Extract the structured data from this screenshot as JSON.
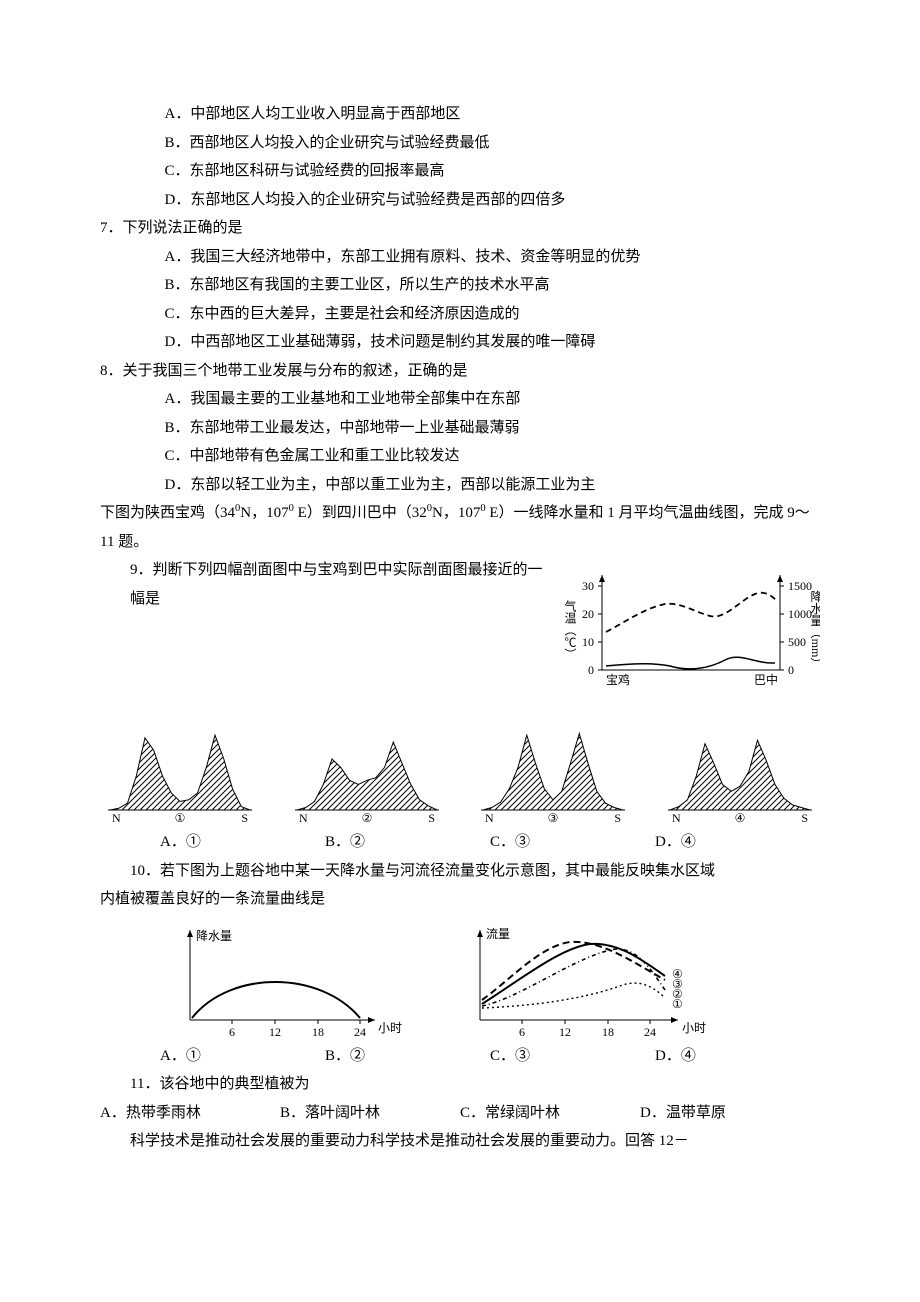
{
  "q6": {
    "A": "A．中部地区人均工业收入明显高于西部地区",
    "B": "B．西部地区人均投入的企业研究与试验经费最低",
    "C": "C．东部地区科研与试验经费的回报率最高",
    "D": "D．东部地区人均投入的企业研究与试验经费是西部的四倍多"
  },
  "q7": {
    "stem": "7．下列说法正确的是",
    "A": "A．我国三大经济地带中，东部工业拥有原料、技术、资金等明显的优势",
    "B": "B．东部地区有我国的主要工业区，所以生产的技术水平高",
    "C": "C．东中西的巨大差异，主要是社会和经济原因造成的",
    "D": "D．中西部地区工业基础薄弱，技术问题是制约其发展的唯一障碍"
  },
  "q8": {
    "stem": "8．关于我国三个地带工业发展与分布的叙述，正确的是",
    "A": "A．我国最主要的工业基地和工业地带全部集中在东部",
    "B": "B．东部地带工业最发达，中部地带一上业基础最薄弱",
    "C": "C．中部地带有色金属工业和重工业比较发达",
    "D": "D．东部以轻工业为主，中部以重工业为主，西部以能源工业为主"
  },
  "intro9_a": "下图为陕西宝鸡（34",
  "intro9_b": "N，107",
  "intro9_c": " E）到四川巴中（32",
  "intro9_d": "N，107",
  "intro9_e": " E）一线降水量和 1 月平均气温曲线图，完成 9～11 题。",
  "sup0": "0",
  "q9": {
    "stem": "9．判断下列四幅剖面图中与宝鸡到巴中实际剖面图最接近的一幅是"
  },
  "chart9": {
    "left_axis": {
      "label": "气温（℃）",
      "ticks": [
        "0",
        "10",
        "20",
        "30"
      ]
    },
    "right_axis": {
      "label": "降水量（mm）",
      "ticks": [
        "0",
        "500",
        "1000",
        "1500"
      ]
    },
    "x_left": "宝鸡",
    "x_right": "巴中",
    "temp_color": "#000",
    "precip_color": "#000",
    "bg": "#ffffff"
  },
  "profiles": {
    "labels": {
      "N": "N",
      "S": "S"
    },
    "circled": [
      "①",
      "②",
      "③",
      "④"
    ],
    "hatch_color": "#000",
    "variants": {
      "1": [
        0,
        2,
        8,
        40,
        85,
        70,
        40,
        20,
        10,
        12,
        20,
        50,
        88,
        60,
        25,
        4,
        0
      ],
      "2": [
        0,
        3,
        10,
        30,
        60,
        50,
        35,
        30,
        35,
        38,
        50,
        80,
        55,
        30,
        12,
        5,
        0
      ],
      "3": [
        0,
        3,
        9,
        25,
        50,
        88,
        55,
        25,
        12,
        22,
        55,
        90,
        55,
        22,
        8,
        3,
        0
      ],
      "4": [
        0,
        4,
        12,
        40,
        78,
        55,
        30,
        22,
        28,
        45,
        82,
        58,
        30,
        14,
        6,
        3,
        0
      ]
    }
  },
  "opts9": {
    "A": "A．①",
    "B": "B．②",
    "C": "C．③",
    "D": "D．④"
  },
  "q10": {
    "stem1": "10．若下图为上题谷地中某一天降水量与河流径流量变化示意图，其中最能反映集水区域",
    "stem2": "内植被覆盖良好的一条流量曲线是"
  },
  "rain": {
    "ylabel": "降水量",
    "xticks": [
      "6",
      "12",
      "18",
      "24"
    ],
    "xunit": "小时",
    "color": "#000"
  },
  "flow": {
    "ylabel": "流量",
    "xticks": [
      "6",
      "12",
      "18",
      "24"
    ],
    "xunit": "小时",
    "series_labels": [
      "④",
      "③",
      "②",
      "①"
    ],
    "colors": [
      "#000",
      "#000",
      "#000",
      "#000"
    ]
  },
  "opts10": {
    "A": "A．①",
    "B": "B．②",
    "C": "C．③",
    "D": "D．④"
  },
  "q11": {
    "stem": "11．该谷地中的典型植被为",
    "A": "A．热带季雨林",
    "B": "B．落叶阔叶林",
    "C": "C．常绿阔叶林",
    "D": "D．温带草原"
  },
  "footer": "科学技术是推动社会发展的重要动力科学技术是推动社会发展的重要动力。回答 12－"
}
